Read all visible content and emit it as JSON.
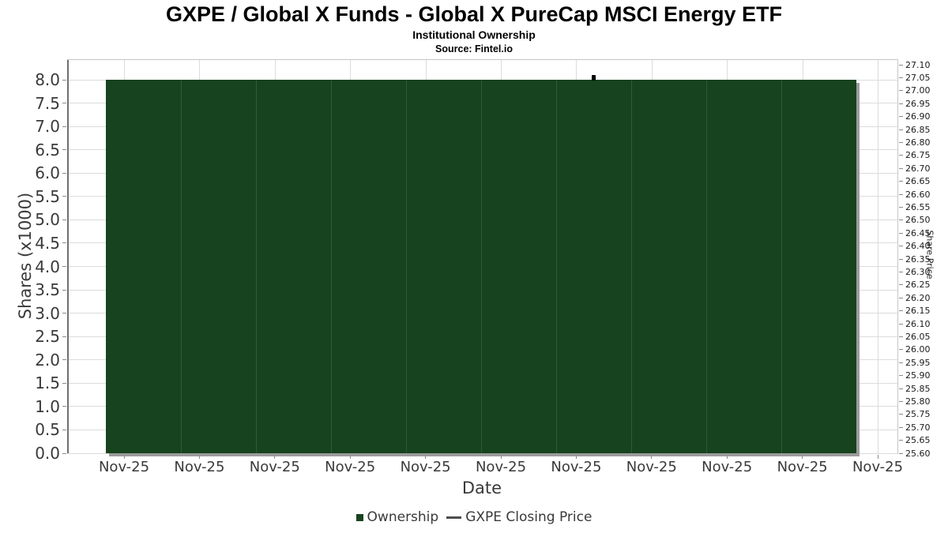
{
  "header": {
    "title": "GXPE / Global X Funds - Global X PureCap MSCI Energy ETF",
    "subtitle": "Institutional Ownership",
    "source": "Source: Fintel.io"
  },
  "axes": {
    "left": {
      "label": "Shares (x1000)",
      "ticks": [
        "8.0",
        "7.5",
        "7.0",
        "6.5",
        "6.0",
        "5.5",
        "5.0",
        "4.5",
        "4.0",
        "3.5",
        "3.0",
        "2.5",
        "2.0",
        "1.5",
        "1.0",
        "0.5",
        "0.0"
      ]
    },
    "right": {
      "label": "Share Price",
      "ticks": [
        "27.10",
        "27.05",
        "27.00",
        "26.95",
        "26.90",
        "26.85",
        "26.80",
        "26.75",
        "26.70",
        "26.65",
        "26.60",
        "26.55",
        "26.50",
        "26.45",
        "26.40",
        "26.35",
        "26.30",
        "26.25",
        "26.20",
        "26.15",
        "26.10",
        "26.05",
        "26.00",
        "25.95",
        "25.90",
        "25.85",
        "25.80",
        "25.75",
        "25.70",
        "25.65",
        "25.60"
      ]
    },
    "x": {
      "label": "Date",
      "ticks": [
        "Nov-25",
        "Nov-25",
        "Nov-25",
        "Nov-25",
        "Nov-25",
        "Nov-25",
        "Nov-25",
        "Nov-25",
        "Nov-25",
        "Nov-25",
        "Nov-25"
      ]
    }
  },
  "legend": {
    "items": [
      {
        "label": "Ownership",
        "marker": "square"
      },
      {
        "label": "GXPE Closing Price",
        "marker": "line"
      }
    ]
  },
  "colors": {
    "bar_fill": "#17431e",
    "bar_edge": "#2e5a36",
    "bar_shadow": "#9c9c9c",
    "grid": "#dcdcdc",
    "frame": "#c6c6c6",
    "spine": "#6f6f6f",
    "tick": "#8a8a8a",
    "text": "#3a3a3a",
    "price_marker": "#000000",
    "legend_line": "#4d4d4d"
  },
  "chart_data": {
    "type": "bar",
    "title": "GXPE / Global X Funds - Global X PureCap MSCI Energy ETF",
    "subtitle": "Institutional Ownership",
    "source": "Source: Fintel.io",
    "xlabel": "Date",
    "ylabel_left": "Shares (x1000)",
    "ylabel_right": "Share Price",
    "categories": [
      "Nov-25",
      "Nov-25",
      "Nov-25",
      "Nov-25",
      "Nov-25",
      "Nov-25",
      "Nov-25",
      "Nov-25",
      "Nov-25",
      "Nov-25"
    ],
    "series": [
      {
        "name": "Ownership",
        "type": "bar",
        "axis": "left",
        "color": "#17431e",
        "values": [
          8.0,
          8.0,
          8.0,
          8.0,
          8.0,
          8.0,
          8.0,
          8.0,
          8.0,
          8.0
        ]
      },
      {
        "name": "GXPE Closing Price",
        "type": "line",
        "axis": "right",
        "color": "#000000",
        "points": [
          {
            "x_index": 6,
            "value": 27.05
          }
        ]
      }
    ],
    "ylim_left": [
      0,
      8.423
    ],
    "ylim_right": [
      25.6,
      27.118
    ],
    "left_tick_step": 0.5,
    "right_tick_step": 0.05,
    "grid": true,
    "legend_position": "bottom"
  }
}
